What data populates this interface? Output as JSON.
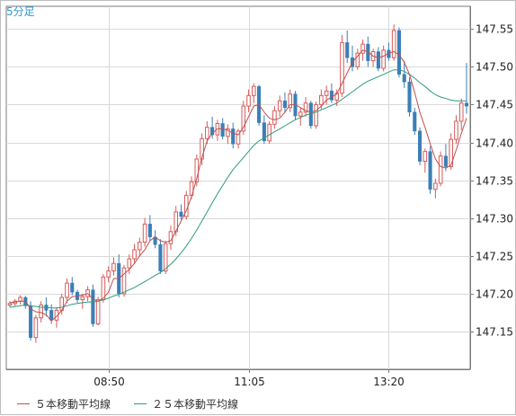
{
  "period_label": "5分足",
  "colors": {
    "up": "#d85a5a",
    "down": "#3a7fb8",
    "ma5": "#c0504d",
    "ma25": "#2e9b7b",
    "grid": "#d9d9d9",
    "axis": "#7a7a7a"
  },
  "chart_data": {
    "type": "candlestick",
    "x_labels": [
      "08:50",
      "11:05",
      "13:20"
    ],
    "x_label_index": [
      19,
      46,
      73
    ],
    "ylim": [
      147.1,
      147.58
    ],
    "y_ticks": [
      "147.15",
      "147.20",
      "147.25",
      "147.30",
      "147.35",
      "147.40",
      "147.45",
      "147.50",
      "147.55"
    ],
    "legend": [
      "５本移動平均線",
      "２５本移動平均線"
    ],
    "candles": [
      [
        147.185,
        147.19,
        147.182,
        147.187
      ],
      [
        147.187,
        147.193,
        147.183,
        147.19
      ],
      [
        147.19,
        147.198,
        147.186,
        147.195
      ],
      [
        147.195,
        147.197,
        147.18,
        147.184
      ],
      [
        147.184,
        147.19,
        147.138,
        147.142
      ],
      [
        147.142,
        147.172,
        147.135,
        147.168
      ],
      [
        147.168,
        147.19,
        147.162,
        147.185
      ],
      [
        147.185,
        147.195,
        147.17,
        147.178
      ],
      [
        147.178,
        147.186,
        147.16,
        147.165
      ],
      [
        147.165,
        147.182,
        147.155,
        147.178
      ],
      [
        147.178,
        147.2,
        147.172,
        147.195
      ],
      [
        147.195,
        147.22,
        147.188,
        147.214
      ],
      [
        147.214,
        147.222,
        147.198,
        147.202
      ],
      [
        147.202,
        147.205,
        147.188,
        147.192
      ],
      [
        147.192,
        147.2,
        147.18,
        147.196
      ],
      [
        147.196,
        147.21,
        147.19,
        147.205
      ],
      [
        147.205,
        147.212,
        147.156,
        147.16
      ],
      [
        147.16,
        147.196,
        147.158,
        147.192
      ],
      [
        147.192,
        147.226,
        147.188,
        147.222
      ],
      [
        147.222,
        147.236,
        147.215,
        147.23
      ],
      [
        147.23,
        147.248,
        147.224,
        147.24
      ],
      [
        147.24,
        147.252,
        147.195,
        147.2
      ],
      [
        147.2,
        147.238,
        147.196,
        147.234
      ],
      [
        147.234,
        147.252,
        147.226,
        147.246
      ],
      [
        147.246,
        147.266,
        147.24,
        147.258
      ],
      [
        147.258,
        147.274,
        147.25,
        147.268
      ],
      [
        147.268,
        147.3,
        147.262,
        147.292
      ],
      [
        147.292,
        147.304,
        147.27,
        147.275
      ],
      [
        147.275,
        147.284,
        147.26,
        147.265
      ],
      [
        147.265,
        147.272,
        147.226,
        147.23
      ],
      [
        147.23,
        147.27,
        147.226,
        147.266
      ],
      [
        147.266,
        147.29,
        147.258,
        147.282
      ],
      [
        147.282,
        147.316,
        147.276,
        147.308
      ],
      [
        147.308,
        147.318,
        147.298,
        147.302
      ],
      [
        147.302,
        147.336,
        147.298,
        147.33
      ],
      [
        147.33,
        147.355,
        147.325,
        147.348
      ],
      [
        147.348,
        147.384,
        147.342,
        147.378
      ],
      [
        147.378,
        147.412,
        147.37,
        147.405
      ],
      [
        147.405,
        147.428,
        147.398,
        147.42
      ],
      [
        147.42,
        147.434,
        147.405,
        147.41
      ],
      [
        147.41,
        147.43,
        147.402,
        147.425
      ],
      [
        147.425,
        147.432,
        147.404,
        147.408
      ],
      [
        147.408,
        147.424,
        147.398,
        147.418
      ],
      [
        147.418,
        147.426,
        147.392,
        147.398
      ],
      [
        147.398,
        147.418,
        147.392,
        147.415
      ],
      [
        147.415,
        147.455,
        147.41,
        147.448
      ],
      [
        147.448,
        147.47,
        147.44,
        147.462
      ],
      [
        147.462,
        147.478,
        147.452,
        147.474
      ],
      [
        147.474,
        147.476,
        147.422,
        147.426
      ],
      [
        147.426,
        147.436,
        147.398,
        147.402
      ],
      [
        147.402,
        147.428,
        147.398,
        147.424
      ],
      [
        147.424,
        147.448,
        147.418,
        147.442
      ],
      [
        147.442,
        147.462,
        147.434,
        147.455
      ],
      [
        147.455,
        147.466,
        147.44,
        147.446
      ],
      [
        147.446,
        147.47,
        147.44,
        147.464
      ],
      [
        147.464,
        147.468,
        147.43,
        147.435
      ],
      [
        147.435,
        147.446,
        147.422,
        147.44
      ],
      [
        147.44,
        147.46,
        147.434,
        147.452
      ],
      [
        147.452,
        147.455,
        147.418,
        147.422
      ],
      [
        147.422,
        147.454,
        147.418,
        147.45
      ],
      [
        147.45,
        147.47,
        147.444,
        147.462
      ],
      [
        147.462,
        147.475,
        147.45,
        147.468
      ],
      [
        147.468,
        147.478,
        147.452,
        147.456
      ],
      [
        147.456,
        147.47,
        147.448,
        147.465
      ],
      [
        147.465,
        147.542,
        147.46,
        147.532
      ],
      [
        147.532,
        147.548,
        147.505,
        147.512
      ],
      [
        147.512,
        147.528,
        147.494,
        147.5
      ],
      [
        147.5,
        147.524,
        147.496,
        147.518
      ],
      [
        147.518,
        147.536,
        147.508,
        147.53
      ],
      [
        147.53,
        147.54,
        147.5,
        147.508
      ],
      [
        147.508,
        147.524,
        147.5,
        147.52
      ],
      [
        147.52,
        147.526,
        147.494,
        147.498
      ],
      [
        147.498,
        147.528,
        147.494,
        147.522
      ],
      [
        147.522,
        147.532,
        147.508,
        147.512
      ],
      [
        147.512,
        147.556,
        147.508,
        147.548
      ],
      [
        147.548,
        147.552,
        147.486,
        147.49
      ],
      [
        147.49,
        147.508,
        147.472,
        147.48
      ],
      [
        147.48,
        147.486,
        147.434,
        147.44
      ],
      [
        147.44,
        147.446,
        147.41,
        147.415
      ],
      [
        147.415,
        147.42,
        147.37,
        147.375
      ],
      [
        147.375,
        147.392,
        147.36,
        147.388
      ],
      [
        147.388,
        147.395,
        147.332,
        147.338
      ],
      [
        147.338,
        147.352,
        147.326,
        147.346
      ],
      [
        147.346,
        147.388,
        147.342,
        147.382
      ],
      [
        147.382,
        147.398,
        147.362,
        147.368
      ],
      [
        147.368,
        147.412,
        147.364,
        147.404
      ],
      [
        147.404,
        147.436,
        147.398,
        147.428
      ],
      [
        147.428,
        147.458,
        147.416,
        147.452
      ],
      [
        147.452,
        147.505,
        147.438,
        147.448
      ]
    ],
    "ma5": [
      147.188,
      147.189,
      147.19,
      147.19,
      147.18,
      147.176,
      147.175,
      147.172,
      147.164,
      147.17,
      147.178,
      147.19,
      147.196,
      147.197,
      147.198,
      147.2,
      147.193,
      147.19,
      147.194,
      147.202,
      147.22,
      147.22,
      147.226,
      147.232,
      147.24,
      147.25,
      147.258,
      147.27,
      147.275,
      147.27,
      147.268,
      147.27,
      147.283,
      147.296,
      147.31,
      147.328,
      147.352,
      147.38,
      147.402,
      147.412,
      147.418,
      147.418,
      147.416,
      147.412,
      147.41,
      147.42,
      147.434,
      147.448,
      147.45,
      147.44,
      147.432,
      147.43,
      147.432,
      147.44,
      147.45,
      147.45,
      147.446,
      147.442,
      147.44,
      147.442,
      147.448,
      147.456,
      147.46,
      147.464,
      147.478,
      147.492,
      147.506,
      147.514,
      147.522,
      147.52,
      147.514,
      147.512,
      147.514,
      147.518,
      147.52,
      147.516,
      147.506,
      147.49,
      147.466,
      147.44,
      147.42,
      147.398,
      147.378,
      147.368,
      147.366,
      147.37,
      147.39,
      147.412,
      147.432
    ],
    "ma25": [
      147.182,
      147.183,
      147.184,
      147.185,
      147.184,
      147.183,
      147.182,
      147.182,
      147.181,
      147.181,
      147.182,
      147.184,
      147.186,
      147.187,
      147.188,
      147.189,
      147.189,
      147.19,
      147.192,
      147.194,
      147.197,
      147.199,
      147.202,
      147.205,
      147.208,
      147.212,
      147.216,
      147.22,
      147.224,
      147.228,
      147.233,
      147.239,
      147.246,
      147.254,
      147.263,
      147.273,
      147.284,
      147.296,
      147.308,
      147.32,
      147.332,
      147.343,
      147.354,
      147.364,
      147.372,
      147.38,
      147.388,
      147.396,
      147.402,
      147.406,
      147.41,
      147.414,
      147.418,
      147.422,
      147.426,
      147.43,
      147.433,
      147.436,
      147.438,
      147.44,
      147.443,
      147.446,
      147.449,
      147.452,
      147.457,
      147.462,
      147.467,
      147.472,
      147.477,
      147.481,
      147.484,
      147.487,
      147.49,
      147.493,
      147.496,
      147.496,
      147.494,
      147.49,
      147.485,
      147.479,
      147.474,
      147.468,
      147.463,
      147.46,
      147.458,
      147.456,
      147.455,
      147.455,
      147.455
    ]
  }
}
